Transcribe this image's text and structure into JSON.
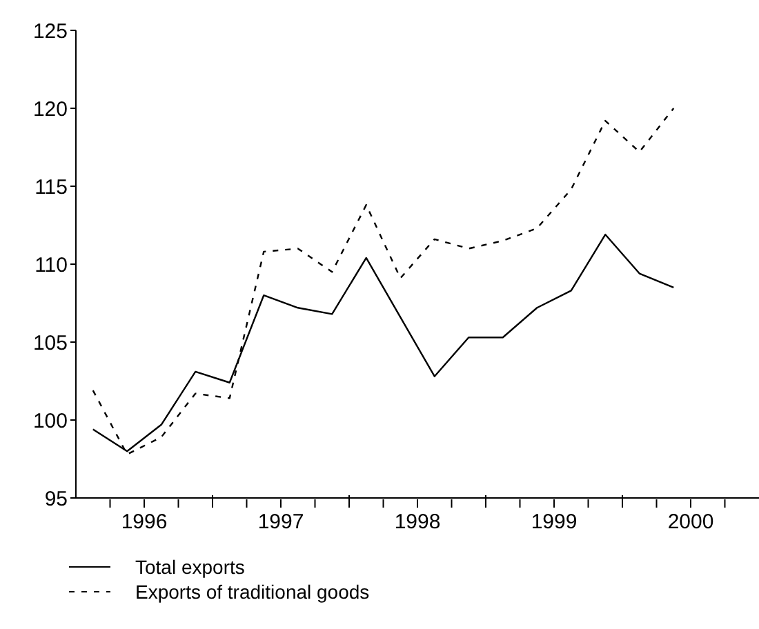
{
  "chart_data": {
    "type": "line",
    "x": [
      1996.125,
      1996.375,
      1996.625,
      1996.875,
      1997.125,
      1997.375,
      1997.625,
      1997.875,
      1998.125,
      1998.375,
      1998.625,
      1998.875,
      1999.125,
      1999.375,
      1999.625,
      1999.875,
      2000.125,
      2000.375
    ],
    "series": [
      {
        "name": "Total exports",
        "color": "#000000",
        "line_style": "solid",
        "values": [
          99.4,
          98.0,
          99.7,
          103.1,
          102.4,
          108.0,
          107.2,
          106.8,
          110.4,
          106.6,
          102.8,
          105.3,
          105.3,
          107.2,
          108.3,
          111.9,
          109.4,
          108.5
        ]
      },
      {
        "name": "Exports of traditional goods",
        "color": "#000000",
        "line_style": "dashed",
        "values": [
          101.9,
          97.8,
          98.9,
          101.7,
          101.4,
          110.8,
          111.0,
          109.5,
          113.8,
          109.1,
          111.6,
          111.0,
          111.5,
          112.3,
          114.8,
          119.2,
          117.2,
          120.0
        ]
      }
    ],
    "xlim": [
      1996,
      2001
    ],
    "xticks": [
      {
        "value": 1996.25,
        "label": null
      },
      {
        "value": 1996.5,
        "label": "1996"
      },
      {
        "value": 1996.75,
        "label": null
      },
      {
        "value": 1997,
        "label": null
      },
      {
        "value": 1997.25,
        "label": null
      },
      {
        "value": 1997.5,
        "label": "1997"
      },
      {
        "value": 1997.75,
        "label": null
      },
      {
        "value": 1998,
        "label": null
      },
      {
        "value": 1998.25,
        "label": null
      },
      {
        "value": 1998.5,
        "label": "1998"
      },
      {
        "value": 1998.75,
        "label": null
      },
      {
        "value": 1999,
        "label": null
      },
      {
        "value": 1999.25,
        "label": null
      },
      {
        "value": 1999.5,
        "label": "1999"
      },
      {
        "value": 1999.75,
        "label": null
      },
      {
        "value": 2000,
        "label": null
      },
      {
        "value": 2000.25,
        "label": null
      },
      {
        "value": 2000.5,
        "label": "2000"
      },
      {
        "value": 2000.75,
        "label": null
      }
    ],
    "ylim": [
      95,
      125
    ],
    "yticks": [
      95,
      100,
      105,
      110,
      115,
      120,
      125
    ],
    "grid": false,
    "legend": "bottom",
    "marker": "none"
  }
}
